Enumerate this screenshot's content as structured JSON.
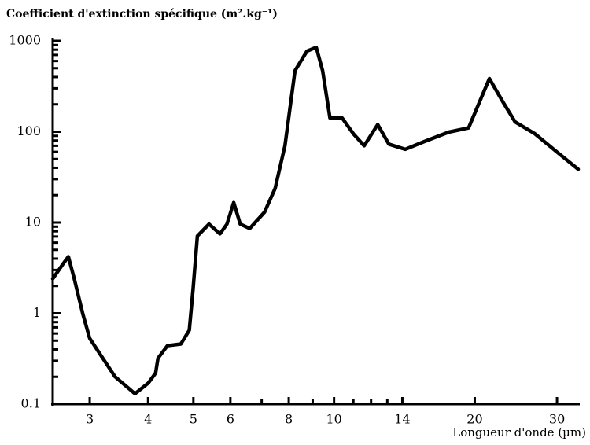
{
  "chart_data": {
    "type": "line",
    "title": "Coefficient d'extinction spécifique (m².kg⁻¹)",
    "x_label": "Longueur d'onde (µm)",
    "x_scale": "log",
    "y_scale": "log",
    "xlim": [
      2.5,
      33.3
    ],
    "ylim": [
      0.1,
      1000
    ],
    "xticks": [
      3,
      4,
      5,
      6,
      8,
      10,
      14,
      20,
      30
    ],
    "xminorticks": [
      7,
      9,
      11,
      12,
      13
    ],
    "yticks": [
      0.1,
      1,
      10,
      100,
      1000
    ],
    "yminorticks": [
      0.2,
      0.3,
      0.4,
      0.5,
      0.6,
      0.7,
      0.8,
      0.9,
      2,
      3,
      4,
      5,
      6,
      7,
      8,
      9,
      20,
      30,
      40,
      50,
      60,
      70,
      80,
      90,
      200,
      300,
      400,
      500,
      600,
      700,
      800,
      900
    ],
    "series": [
      {
        "color": "#000000",
        "x": [
          2.5,
          2.63,
          2.7,
          2.78,
          2.9,
          3.0,
          3.2,
          3.4,
          3.75,
          4.0,
          4.15,
          4.2,
          4.4,
          4.7,
          4.9,
          4.99,
          5.1,
          5.4,
          5.7,
          5.9,
          6.1,
          6.3,
          6.6,
          7.1,
          7.48,
          7.85,
          8.25,
          8.75,
          9.16,
          9.45,
          9.8,
          10.4,
          11.0,
          11.6,
          12.4,
          13.1,
          14.2,
          15.6,
          17.6,
          19.4,
          21.5,
          23.0,
          24.4,
          26.9,
          30.2,
          33.3
        ],
        "values": [
          2.4,
          3.5,
          4.2,
          2.4,
          0.98,
          0.53,
          0.32,
          0.2,
          0.13,
          0.17,
          0.22,
          0.32,
          0.44,
          0.46,
          0.65,
          1.8,
          7.1,
          9.6,
          7.5,
          9.6,
          16.6,
          9.6,
          8.6,
          13,
          23.7,
          70,
          470,
          770,
          850,
          470,
          142,
          142,
          95,
          70,
          120,
          73,
          64,
          78,
          99,
          110,
          384,
          211,
          128,
          95,
          58,
          38.6
        ]
      }
    ]
  }
}
